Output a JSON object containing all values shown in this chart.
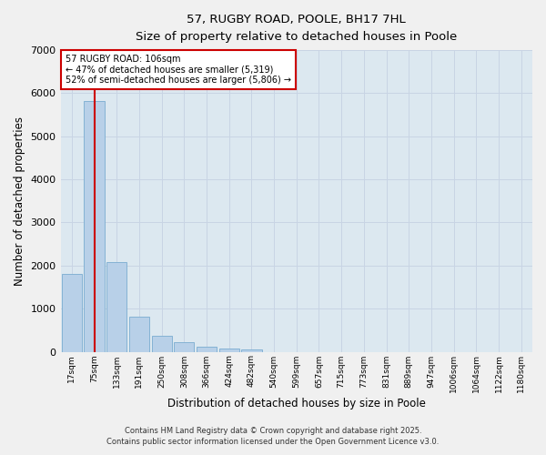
{
  "title1": "57, RUGBY ROAD, POOLE, BH17 7HL",
  "title2": "Size of property relative to detached houses in Poole",
  "xlabel": "Distribution of detached houses by size in Poole",
  "ylabel": "Number of detached properties",
  "categories": [
    "17sqm",
    "75sqm",
    "133sqm",
    "191sqm",
    "250sqm",
    "308sqm",
    "366sqm",
    "424sqm",
    "482sqm",
    "540sqm",
    "599sqm",
    "657sqm",
    "715sqm",
    "773sqm",
    "831sqm",
    "889sqm",
    "947sqm",
    "1006sqm",
    "1064sqm",
    "1122sqm",
    "1180sqm"
  ],
  "values": [
    1800,
    5820,
    2080,
    820,
    360,
    215,
    110,
    80,
    55,
    0,
    0,
    0,
    0,
    0,
    0,
    0,
    0,
    0,
    0,
    0,
    0
  ],
  "bar_color": "#b8d0e8",
  "bar_edge_color": "#7aacd0",
  "vline_x_index": 1,
  "vline_color": "#cc0000",
  "vline_label": "57 RUGBY ROAD: 106sqm",
  "annotation_line2": "← 47% of detached houses are smaller (5,319)",
  "annotation_line3": "52% of semi-detached houses are larger (5,806) →",
  "annotation_box_color": "#cc0000",
  "annotation_text_color": "#000000",
  "annotation_bg": "#ffffff",
  "ylim": [
    0,
    7000
  ],
  "yticks": [
    0,
    1000,
    2000,
    3000,
    4000,
    5000,
    6000,
    7000
  ],
  "grid_color": "#c8d4e4",
  "bg_color": "#dce8f0",
  "fig_bg_color": "#f0f0f0",
  "footer1": "Contains HM Land Registry data © Crown copyright and database right 2025.",
  "footer2": "Contains public sector information licensed under the Open Government Licence v3.0."
}
